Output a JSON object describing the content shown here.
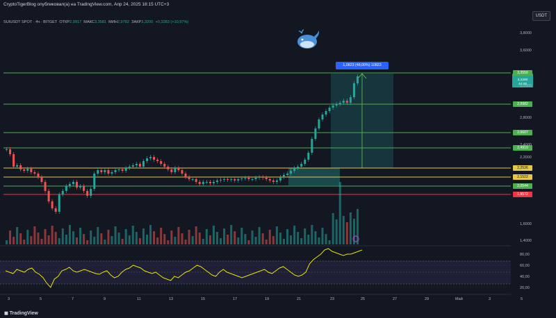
{
  "header": {
    "title": "CryptoTigerBlog опубликовал(а) на TradingView.com, Апр 24, 2025 18:15 UTC+3"
  },
  "currency": "USDT",
  "legend": {
    "pair": "SUIUSDT SPOT · 4ч · BITGET",
    "open_label": "ОТКР",
    "open": "2,9917",
    "high_label": "МАКС",
    "high": "3,3581",
    "low_label": "МИН",
    "low": "2,9782",
    "close_label": "ЗАКР",
    "close": "3,3200",
    "change": "+0,3283 (+10,97%)"
  },
  "position_label": "1,0823 (48,00%) 10823",
  "symbol_tag": {
    "symbol": "SUIUSDT",
    "price": "3,3290",
    "countdown": "44:46"
  },
  "price_axis": [
    "3,8000",
    "3,6000",
    "3,2000",
    "2,8000",
    "2,6000",
    "2,4000",
    "2,2000",
    "1,8000",
    "1,6000",
    "1,4000"
  ],
  "level_tags": [
    {
      "value": "3,3550",
      "color": "#4caf50"
    },
    {
      "value": "2,9982",
      "color": "#4caf50"
    },
    {
      "value": "2,6607",
      "color": "#4caf50"
    },
    {
      "value": "2,4919",
      "color": "#4caf50"
    },
    {
      "value": "2,2536",
      "color": "#e6c74a"
    },
    {
      "value": "2,1522",
      "color": "#e6c74a"
    },
    {
      "value": "2,0544",
      "color": "#4caf50"
    },
    {
      "value": "1,9572",
      "color": "#f23645"
    }
  ],
  "rsi_axis": [
    "80,00",
    "60,00",
    "40,00",
    "20,00"
  ],
  "date_axis": [
    "3",
    "5",
    "7",
    "9",
    "11",
    "13",
    "15",
    "17",
    "19",
    "21",
    "23",
    "25",
    "27",
    "29",
    "Май",
    "3",
    "5"
  ],
  "footer": {
    "logo": "TradingView"
  },
  "colors": {
    "up": "#26a69a",
    "down": "#ef5350",
    "rsi": "#e6e600",
    "accent": "#2962ff"
  }
}
